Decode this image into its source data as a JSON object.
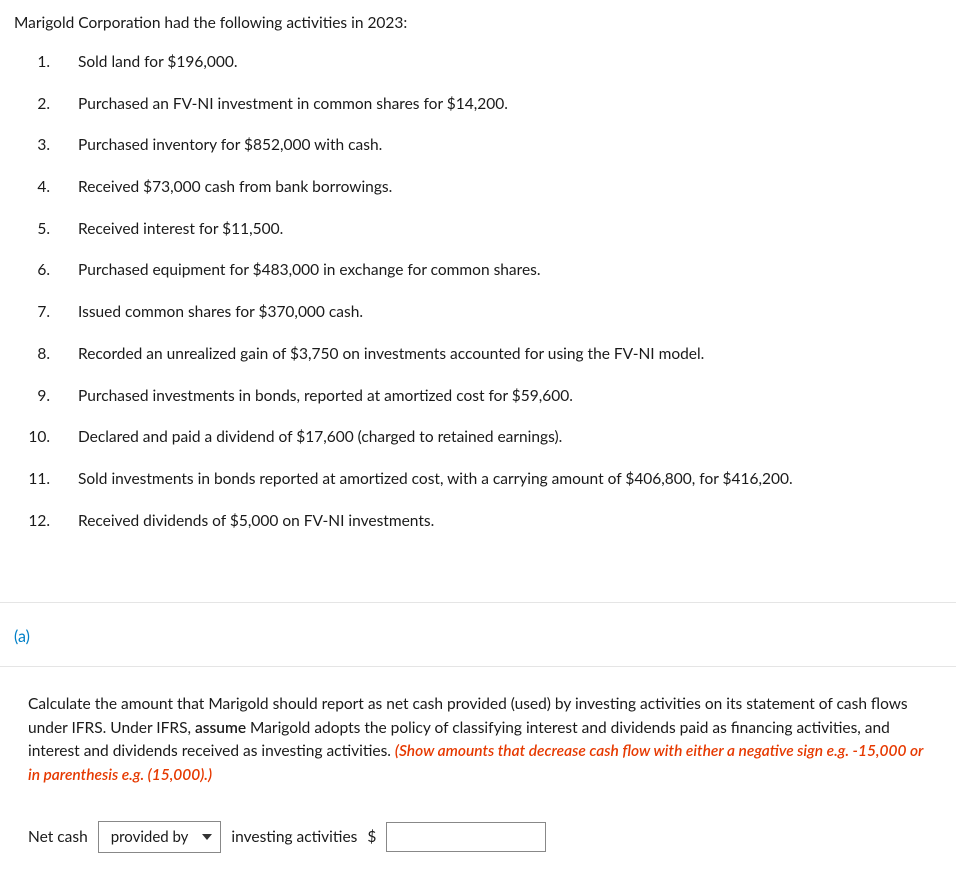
{
  "intro": "Marigold Corporation had the following activities in 2023:",
  "items": [
    {
      "n": "1.",
      "text": "Sold land for $196,000."
    },
    {
      "n": "2.",
      "text": "Purchased an FV-NI investment in common shares for $14,200."
    },
    {
      "n": "3.",
      "text": "Purchased inventory for $852,000 with cash."
    },
    {
      "n": "4.",
      "text": "Received $73,000 cash from bank borrowings."
    },
    {
      "n": "5.",
      "text": "Received interest for $11,500."
    },
    {
      "n": "6.",
      "text": "Purchased equipment for $483,000 in exchange for common shares."
    },
    {
      "n": "7.",
      "text": "Issued common shares for $370,000 cash."
    },
    {
      "n": "8.",
      "text": "Recorded an unrealized gain of $3,750 on investments accounted for using the FV-NI model."
    },
    {
      "n": "9.",
      "text": "Purchased investments in bonds, reported at amortized cost for $59,600."
    },
    {
      "n": "10.",
      "text": "Declared and paid a dividend of $17,600 (charged to retained earnings)."
    },
    {
      "n": "11.",
      "text": "Sold investments in bonds reported at amortized cost, with a carrying amount of $406,800, for $416,200."
    },
    {
      "n": "12.",
      "text": "Received dividends of $5,000 on FV-NI investments."
    }
  ],
  "part_label": "(a)",
  "question": {
    "pre": "Calculate the amount that Marigold should report as net cash provided (used) by investing activities on its statement of cash flows under IFRS. Under IFRS, ",
    "bold": "assume",
    "mid": " Marigold adopts the policy of classifying interest and dividends paid as financing activities, and interest and dividends received as investing activities. ",
    "red": "(Show amounts that decrease cash flow with either a negative sign e.g. -15,000 or in parenthesis e.g. (15,000).)"
  },
  "answer": {
    "prefix": "Net cash",
    "select_value": "provided by",
    "mid": "investing activities",
    "currency": "$",
    "input_value": ""
  }
}
